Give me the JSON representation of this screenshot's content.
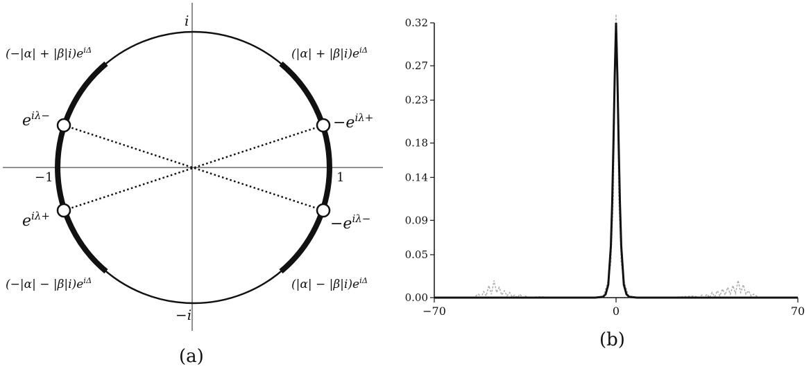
{
  "panel_a": {
    "caption": "(a)",
    "axis_labels": {
      "top": "i",
      "bottom": "−i",
      "left": "−1",
      "right": "1"
    },
    "arc_labels": {
      "top_left": "(−|α| + |β|i)e^{iΔ}",
      "top_right": "(|α| + |β|i)e^{iΔ}",
      "bottom_left": "(−|α| − |β|i)e^{iΔ}",
      "bottom_right": "(|α| − |β|i)e^{iΔ}"
    },
    "point_labels": {
      "upper_left": "e^{iλ−}",
      "upper_right": "−e^{iλ+}",
      "lower_left": "e^{iλ+}",
      "lower_right": "−e^{iλ−}"
    }
  },
  "panel_b": {
    "caption": "(b)",
    "yticks": [
      "0.00",
      "0.05",
      "0.09",
      "0.14",
      "0.18",
      "0.23",
      "0.27",
      "0.32"
    ],
    "xticks": [
      "−70",
      "0",
      "70"
    ]
  },
  "chart_data": {
    "type": "line",
    "xlim": [
      -70,
      70
    ],
    "ylim": [
      0,
      0.32
    ],
    "x_tick_values": [
      -70,
      0,
      70
    ],
    "y_tick_values": [
      0.0,
      0.05,
      0.09,
      0.14,
      0.18,
      0.23,
      0.27,
      0.32
    ],
    "grid": false,
    "series": [
      {
        "style": "solid black, thick",
        "x": [
          -70,
          -20,
          -8,
          -5,
          -4,
          -3,
          -2,
          -1.5,
          -1,
          -0.5,
          0,
          0.5,
          1,
          1.5,
          2,
          3,
          4,
          5,
          8,
          20,
          70
        ],
        "y": [
          0,
          0,
          0,
          0.001,
          0.004,
          0.015,
          0.06,
          0.11,
          0.18,
          0.26,
          0.32,
          0.26,
          0.18,
          0.11,
          0.06,
          0.015,
          0.004,
          0.001,
          0,
          0,
          0
        ]
      },
      {
        "style": "dashed gray",
        "x": [
          -70,
          -55,
          -53,
          -52,
          -51,
          -50,
          -49,
          -48,
          -47,
          -46,
          -45,
          -44,
          -43,
          -42,
          -41,
          -40,
          -39,
          -38,
          -37,
          -36,
          -35,
          -34,
          -30,
          -20,
          -5,
          -3,
          -2,
          -1,
          -0.5,
          0,
          0.5,
          1,
          2,
          3,
          5,
          20,
          30,
          32,
          33,
          34,
          35,
          36,
          37,
          38,
          39,
          40,
          41,
          42,
          43,
          44,
          45,
          46,
          47,
          48,
          49,
          50,
          51,
          52,
          53,
          55,
          70
        ],
        "y": [
          0,
          0,
          0.004,
          0.0,
          0.007,
          0.002,
          0.014,
          0.004,
          0.02,
          0.006,
          0.012,
          0.003,
          0.008,
          0.002,
          0.006,
          0.001,
          0.003,
          0.0,
          0.004,
          0.0,
          0.002,
          0.0,
          0.001,
          0,
          0,
          0.02,
          0.04,
          0.12,
          0.26,
          0.33,
          0.26,
          0.12,
          0.04,
          0.02,
          0,
          0,
          0.002,
          0.0,
          0.003,
          0.0,
          0.004,
          0.0,
          0.006,
          0.001,
          0.008,
          0.002,
          0.01,
          0.003,
          0.012,
          0.004,
          0.014,
          0.005,
          0.02,
          0.006,
          0.015,
          0.004,
          0.008,
          0.002,
          0.004,
          0,
          0
        ]
      }
    ]
  }
}
